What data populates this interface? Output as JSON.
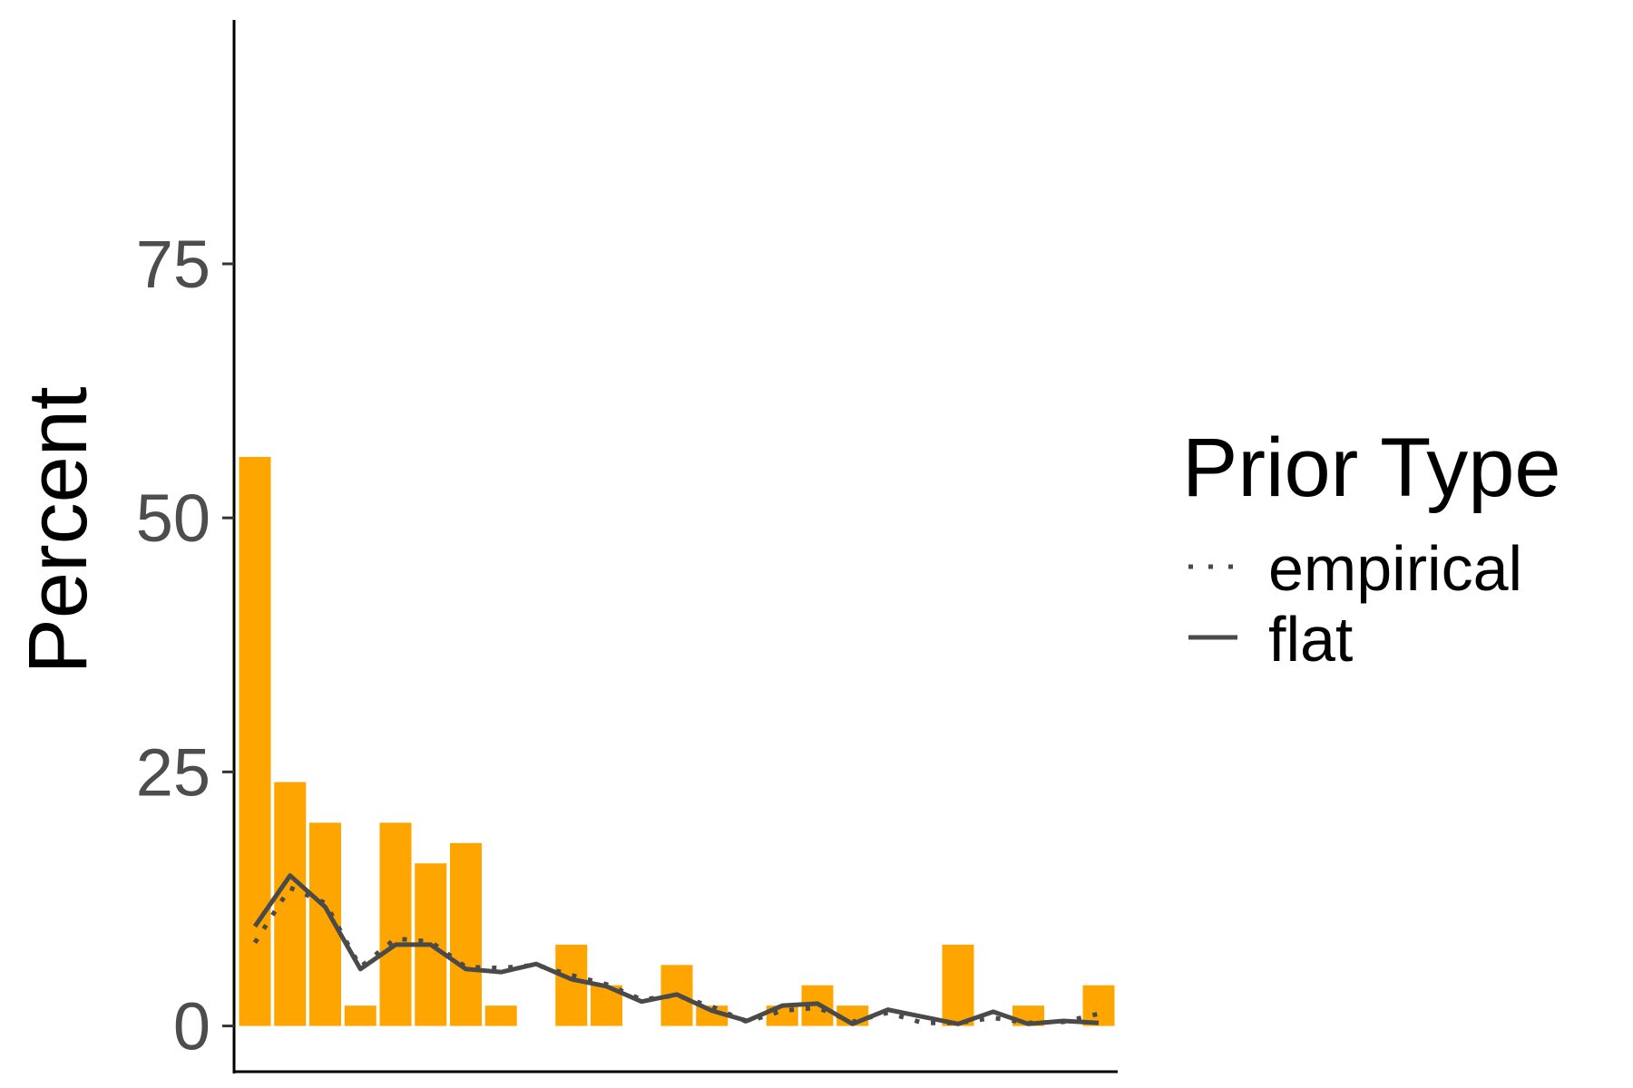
{
  "chart_data": {
    "type": "bar",
    "ylabel": "Percent",
    "xlabel": "",
    "ylim": [
      -4.5,
      99
    ],
    "yticks": [
      0,
      25,
      50,
      75
    ],
    "bar_color": "#FFA500",
    "line_color": "#4a4a4a",
    "bars": [
      56,
      24,
      20,
      2,
      20,
      16,
      18,
      2,
      0,
      8,
      4,
      0,
      6,
      2,
      0,
      2,
      4,
      2,
      0,
      0,
      8,
      0,
      2,
      0,
      4
    ],
    "series": [
      {
        "name": "empirical",
        "style": "dotted",
        "values": [
          8.2,
          13.6,
          12.1,
          5.8,
          8.6,
          8.3,
          5.8,
          5.7,
          6.0,
          5.0,
          4.1,
          2.6,
          3.0,
          1.9,
          0.4,
          1.5,
          1.8,
          0.4,
          1.3,
          0.3,
          0.3,
          0.8,
          0.3,
          0.4,
          1.2
        ]
      },
      {
        "name": "flat",
        "style": "solid",
        "values": [
          9.8,
          14.8,
          11.7,
          5.6,
          8.0,
          8.0,
          5.6,
          5.3,
          6.1,
          4.6,
          3.9,
          2.4,
          3.1,
          1.5,
          0.5,
          2.0,
          2.2,
          0.2,
          1.6,
          0.9,
          0.2,
          1.4,
          0.2,
          0.5,
          0.3
        ]
      }
    ],
    "legend": {
      "title": "Prior Type",
      "position": "right",
      "entries": [
        "empirical",
        "flat"
      ]
    }
  }
}
